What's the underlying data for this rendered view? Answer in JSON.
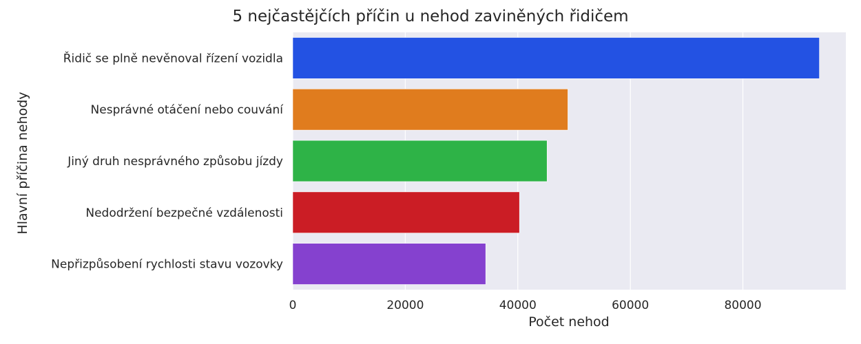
{
  "chart_data": {
    "type": "bar",
    "orientation": "horizontal",
    "title": "5 nejčastějčích příčin u nehod zaviněných řidičem",
    "xlabel": "Počet nehod",
    "ylabel": "Hlavní příčina nehody",
    "categories": [
      "Řidič se plně nevěnoval řízení vozidla",
      "Nesprávné otáčení nebo couvání",
      "Jiný druh nesprávného způsobu jízdy",
      "Nedodržení bezpečné vzdálenosti",
      "Nepřizpůsobení rychlosti stavu vozovky"
    ],
    "values": [
      93600,
      48900,
      45200,
      40300,
      34300
    ],
    "colors": [
      "#2352e3",
      "#e07c1e",
      "#2eb347",
      "#cb1d25",
      "#8541cf"
    ],
    "xlim": [
      0,
      98300
    ],
    "xticks": [
      0,
      20000,
      40000,
      60000,
      80000
    ],
    "xtick_labels": [
      "0",
      "20000",
      "40000",
      "60000",
      "80000"
    ],
    "grid": true,
    "background": "#eaeaf2"
  }
}
